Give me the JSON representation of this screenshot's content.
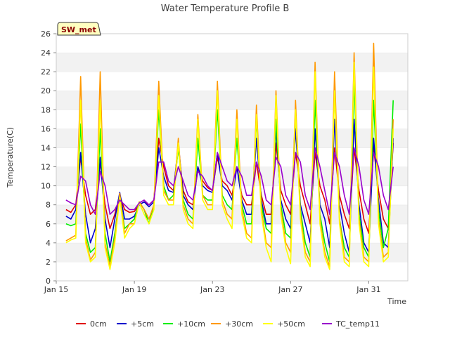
{
  "chart_data": {
    "type": "line",
    "title": "Water Temperature Profile B",
    "xlabel": "Time",
    "ylabel": "Temperature(C)",
    "badge": "SW_met",
    "ylim": [
      0,
      26
    ],
    "yticks": [
      0,
      2,
      4,
      6,
      8,
      10,
      12,
      14,
      16,
      18,
      20,
      22,
      24,
      26
    ],
    "xlim": [
      "2015-01-15",
      "2015-02-02"
    ],
    "xticks": [
      {
        "label": "Jan 15",
        "date": "2015-01-15"
      },
      {
        "label": "Jan 19",
        "date": "2015-01-19"
      },
      {
        "label": "Jan 23",
        "date": "2015-01-23"
      },
      {
        "label": "Jan 27",
        "date": "2015-01-27"
      },
      {
        "label": "Jan 31",
        "date": "2015-01-31"
      }
    ],
    "grid": "horizontal bands",
    "legend_position": "bottom",
    "x": [
      "2015-01-15T12:00",
      "2015-01-15T18:00",
      "2015-01-16T00:00",
      "2015-01-16T06:00",
      "2015-01-16T12:00",
      "2015-01-16T18:00",
      "2015-01-17T00:00",
      "2015-01-17T06:00",
      "2015-01-17T12:00",
      "2015-01-17T18:00",
      "2015-01-18T00:00",
      "2015-01-18T06:00",
      "2015-01-18T12:00",
      "2015-01-18T18:00",
      "2015-01-19T00:00",
      "2015-01-19T06:00",
      "2015-01-19T12:00",
      "2015-01-19T18:00",
      "2015-01-20T00:00",
      "2015-01-20T06:00",
      "2015-01-20T12:00",
      "2015-01-20T18:00",
      "2015-01-21T00:00",
      "2015-01-21T06:00",
      "2015-01-21T12:00",
      "2015-01-21T18:00",
      "2015-01-22T00:00",
      "2015-01-22T06:00",
      "2015-01-22T12:00",
      "2015-01-22T18:00",
      "2015-01-23T00:00",
      "2015-01-23T06:00",
      "2015-01-23T12:00",
      "2015-01-23T18:00",
      "2015-01-24T00:00",
      "2015-01-24T06:00",
      "2015-01-24T12:00",
      "2015-01-24T18:00",
      "2015-01-25T00:00",
      "2015-01-25T06:00",
      "2015-01-25T12:00",
      "2015-01-25T18:00",
      "2015-01-26T00:00",
      "2015-01-26T06:00",
      "2015-01-26T12:00",
      "2015-01-26T18:00",
      "2015-01-27T00:00",
      "2015-01-27T06:00",
      "2015-01-27T12:00",
      "2015-01-27T18:00",
      "2015-01-28T00:00",
      "2015-01-28T06:00",
      "2015-01-28T12:00",
      "2015-01-28T18:00",
      "2015-01-29T00:00",
      "2015-01-29T06:00",
      "2015-01-29T12:00",
      "2015-01-29T18:00",
      "2015-01-30T00:00",
      "2015-01-30T06:00",
      "2015-01-30T12:00",
      "2015-01-30T18:00",
      "2015-01-31T00:00",
      "2015-01-31T06:00",
      "2015-01-31T12:00",
      "2015-01-31T18:00",
      "2015-02-01T00:00",
      "2015-02-01T06:00"
    ],
    "series": [
      {
        "name": "0cm",
        "color": "#e00000",
        "values": [
          7.5,
          7.2,
          8.0,
          13.0,
          9.0,
          7.0,
          7.5,
          12.5,
          8.0,
          5.5,
          7.0,
          9.0,
          7.5,
          7.2,
          7.3,
          8.0,
          8.3,
          8.0,
          8.5,
          15.0,
          12.0,
          10.0,
          9.5,
          14.0,
          9.5,
          8.3,
          8.0,
          12.0,
          10.5,
          9.8,
          9.5,
          13.0,
          10.5,
          10.0,
          9.0,
          12.0,
          9.0,
          8.0,
          8.0,
          12.5,
          9.0,
          7.0,
          7.0,
          14.5,
          9.5,
          8.0,
          7.0,
          13.5,
          10.0,
          8.0,
          6.0,
          13.5,
          10.0,
          8.5,
          6.0,
          14.0,
          9.0,
          7.0,
          5.5,
          14.0,
          9.5,
          6.5,
          5.0,
          14.0,
          9.5,
          6.5,
          5.5,
          14.5
        ]
      },
      {
        "name": "+5cm",
        "color": "#0000cc",
        "values": [
          6.8,
          6.5,
          7.5,
          13.5,
          7.0,
          4.0,
          5.5,
          13.0,
          6.5,
          3.5,
          6.5,
          9.3,
          6.5,
          6.5,
          6.8,
          8.0,
          8.3,
          7.8,
          8.3,
          14.0,
          11.0,
          9.5,
          9.3,
          14.5,
          9.0,
          8.0,
          7.5,
          12.0,
          10.0,
          9.5,
          9.3,
          13.5,
          10.0,
          9.5,
          8.5,
          12.0,
          8.5,
          7.0,
          7.0,
          15.0,
          8.5,
          6.0,
          6.0,
          16.0,
          8.5,
          6.5,
          5.5,
          16.0,
          8.0,
          6.0,
          4.0,
          16.0,
          8.0,
          6.5,
          3.5,
          17.0,
          8.0,
          5.0,
          3.0,
          17.0,
          8.0,
          4.0,
          3.0,
          15.0,
          8.5,
          4.0,
          3.5,
          15.0
        ]
      },
      {
        "name": "+10cm",
        "color": "#00ee00",
        "values": [
          6.0,
          5.8,
          6.0,
          16.5,
          5.0,
          3.0,
          3.5,
          16.0,
          5.0,
          2.0,
          5.0,
          9.0,
          5.5,
          6.0,
          6.5,
          8.3,
          7.5,
          6.0,
          8.0,
          18.0,
          10.0,
          8.5,
          9.0,
          14.0,
          8.5,
          7.0,
          6.5,
          15.0,
          9.0,
          8.5,
          8.5,
          18.0,
          9.0,
          8.0,
          7.5,
          15.0,
          8.0,
          6.0,
          6.0,
          17.0,
          8.0,
          5.5,
          5.0,
          17.0,
          8.0,
          5.0,
          4.5,
          18.0,
          7.5,
          4.0,
          2.5,
          19.0,
          7.0,
          4.0,
          2.0,
          20.5,
          6.5,
          3.5,
          2.5,
          21.0,
          7.0,
          3.5,
          2.5,
          19.0,
          7.5,
          3.5,
          5.5,
          19.0
        ]
      },
      {
        "name": "+30cm",
        "color": "#ff9900",
        "values": [
          4.2,
          4.5,
          4.8,
          21.5,
          4.5,
          2.2,
          3.0,
          22.0,
          4.0,
          1.5,
          4.5,
          9.2,
          5.0,
          6.0,
          6.0,
          8.3,
          7.5,
          6.5,
          8.0,
          21.0,
          9.5,
          8.5,
          8.5,
          15.0,
          8.0,
          6.5,
          6.0,
          17.5,
          9.0,
          8.0,
          8.0,
          21.0,
          8.5,
          7.0,
          6.5,
          18.0,
          7.5,
          5.0,
          4.5,
          18.5,
          7.5,
          4.0,
          3.5,
          20.0,
          7.5,
          4.0,
          3.0,
          19.0,
          7.0,
          3.0,
          2.0,
          23.0,
          6.5,
          3.0,
          1.5,
          22.0,
          6.5,
          2.5,
          2.0,
          24.0,
          6.5,
          2.5,
          2.0,
          25.0,
          6.5,
          2.5,
          3.0,
          17.0
        ]
      },
      {
        "name": "+50cm",
        "color": "#ffff00",
        "values": [
          4.0,
          4.3,
          4.5,
          19.0,
          4.0,
          2.0,
          2.5,
          19.0,
          3.5,
          1.2,
          4.0,
          8.8,
          4.5,
          5.5,
          6.0,
          8.2,
          7.0,
          6.0,
          7.5,
          19.5,
          9.0,
          8.0,
          8.0,
          14.5,
          7.5,
          6.0,
          5.5,
          17.0,
          8.5,
          7.5,
          7.5,
          20.0,
          8.0,
          6.5,
          5.5,
          17.0,
          7.0,
          4.5,
          4.0,
          17.5,
          7.0,
          3.5,
          2.0,
          19.5,
          7.0,
          3.5,
          1.8,
          18.0,
          6.5,
          2.5,
          1.5,
          22.0,
          6.0,
          2.5,
          1.2,
          20.0,
          6.0,
          2.0,
          1.5,
          23.0,
          6.0,
          2.0,
          1.5,
          22.5,
          6.0,
          2.0,
          2.5,
          16.0
        ]
      },
      {
        "name": "TC_temp11",
        "color": "#9900cc",
        "values": [
          8.5,
          8.2,
          8.0,
          11.0,
          10.5,
          8.0,
          7.0,
          11.5,
          10.0,
          7.0,
          7.5,
          8.5,
          8.0,
          7.5,
          7.5,
          8.2,
          8.5,
          8.0,
          8.5,
          12.5,
          12.5,
          10.5,
          10.0,
          12.0,
          10.5,
          9.0,
          8.5,
          11.5,
          11.0,
          10.0,
          9.5,
          13.5,
          12.0,
          10.5,
          10.0,
          12.0,
          11.0,
          9.0,
          9.0,
          12.5,
          11.0,
          8.5,
          8.0,
          13.0,
          12.0,
          9.0,
          8.0,
          13.5,
          12.5,
          9.0,
          7.5,
          14.0,
          12.0,
          9.5,
          7.0,
          13.5,
          12.0,
          9.0,
          7.0,
          14.0,
          12.0,
          8.5,
          7.0,
          13.5,
          12.0,
          9.0,
          7.5,
          12.0
        ]
      }
    ]
  }
}
